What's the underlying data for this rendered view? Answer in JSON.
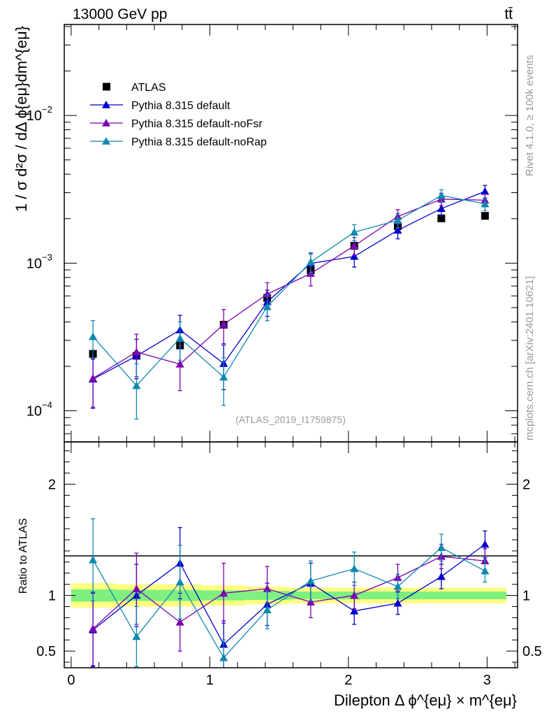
{
  "header": {
    "left": "13000 GeV pp",
    "right": "tt̄"
  },
  "side_labels": {
    "rivet": "Rivet 4.1.0, ≥ 100k events",
    "source": "mcplots.cern.ch [arXiv:2401.10621]"
  },
  "watermark": "(ATLAS_2019_I1759875)",
  "chart_data": [
    {
      "panel": "main",
      "type": "scatter",
      "scale": "log",
      "ylabel": "1 / σ  d²σ / dΔ ϕ{eμ}dm^{eμ}",
      "ylim": [
        6.16e-05,
        0.0413
      ],
      "xlim": [
        -0.05,
        3.22
      ],
      "y_ticks": [
        {
          "value": 0.0001,
          "base": "10",
          "exp": "−4"
        },
        {
          "value": 0.001,
          "base": "10",
          "exp": "−3"
        },
        {
          "value": 0.01,
          "base": "10",
          "exp": "−2"
        }
      ],
      "x": [
        0.157,
        0.471,
        0.785,
        1.1,
        1.414,
        1.728,
        2.042,
        2.356,
        2.67,
        2.985
      ],
      "series": [
        {
          "name": "ATLAS",
          "color": "#000000",
          "marker": "square",
          "line": false,
          "values": [
            0.000243,
            0.000236,
            0.000277,
            0.000383,
            0.000581,
            0.000895,
            0.00131,
            0.00178,
            0.00201,
            0.00209
          ],
          "err": [
            2e-05,
            2e-05,
            2e-05,
            2e-05,
            3e-05,
            4e-05,
            5e-05,
            6e-05,
            7e-05,
            7e-05
          ]
        },
        {
          "name": "Pythia 8.315 default",
          "color": "#0000cc",
          "marker": "triangle",
          "line": true,
          "values": [
            0.000164,
            0.000235,
            0.000353,
            0.000209,
            0.000546,
            0.000996,
            0.00111,
            0.00167,
            0.00234,
            0.00306
          ],
          "err": [
            6e-05,
            7e-05,
            9e-05,
            7e-05,
            0.00011,
            0.00016,
            0.00017,
            0.00021,
            0.00025,
            0.0003
          ]
        },
        {
          "name": "Pythia 8.315 default-noFsr",
          "color": "#7b00b0",
          "marker": "triangle",
          "line": true,
          "values": [
            0.000166,
            0.00025,
            0.000207,
            0.000385,
            0.000617,
            0.000851,
            0.00131,
            0.00207,
            0.00271,
            0.00267
          ],
          "err": [
            6e-05,
            8e-05,
            7e-05,
            0.0001,
            0.00012,
            0.00015,
            0.00018,
            0.00023,
            0.00026,
            0.00026
          ]
        },
        {
          "name": "Pythia 8.315 default-noRap",
          "color": "#0e88b0",
          "marker": "triangle",
          "line": true,
          "values": [
            0.000318,
            0.000148,
            0.00031,
            0.000169,
            0.000507,
            0.001017,
            0.00162,
            0.00195,
            0.00287,
            0.00252
          ],
          "err": [
            9e-05,
            6e-05,
            9e-05,
            6e-05,
            0.0001,
            0.00016,
            0.0002,
            0.00022,
            0.00027,
            0.00025
          ]
        }
      ]
    },
    {
      "panel": "ratio",
      "type": "scatter",
      "ylabel": "Ratio to ATLAS",
      "xlabel": "Dilepton Δ ϕ^{eμ} × m^{eμ}",
      "ylim": [
        0.35,
        2.38
      ],
      "x_ticks": [
        "0",
        "1",
        "2",
        "3"
      ],
      "y_ticks": [
        "0.5",
        "1",
        "2"
      ],
      "x": [
        0.157,
        0.471,
        0.785,
        1.1,
        1.414,
        1.728,
        2.042,
        2.356,
        2.67,
        2.985
      ],
      "band_inner": [
        0.055,
        0.05,
        0.05,
        0.045,
        0.04,
        0.035,
        0.035,
        0.035,
        0.035,
        0.035
      ],
      "band_outer": [
        0.11,
        0.1,
        0.1,
        0.09,
        0.08,
        0.07,
        0.07,
        0.07,
        0.07,
        0.07
      ],
      "series": [
        {
          "name": "Pythia 8.315 default",
          "color": "#0000cc",
          "values": [
            0.69,
            1.0,
            1.29,
            0.56,
            0.92,
            1.11,
            0.86,
            0.93,
            1.17,
            1.46
          ],
          "err": [
            0.33,
            0.28,
            0.32,
            0.21,
            0.19,
            0.18,
            0.12,
            0.1,
            0.11,
            0.12
          ]
        },
        {
          "name": "Pythia 8.315 default-noFsr",
          "color": "#7b00b0",
          "values": [
            0.7,
            1.06,
            0.76,
            1.02,
            1.06,
            0.94,
            1.0,
            1.16,
            1.35,
            1.31
          ],
          "err": [
            0.33,
            0.32,
            0.26,
            0.27,
            0.2,
            0.14,
            0.12,
            0.12,
            0.11,
            0.11
          ]
        },
        {
          "name": "Pythia 8.315 default-noRap",
          "color": "#0e88b0",
          "values": [
            1.32,
            0.63,
            1.12,
            0.44,
            0.87,
            1.13,
            1.24,
            1.08,
            1.43,
            1.22
          ],
          "err": [
            0.37,
            0.27,
            0.33,
            0.16,
            0.17,
            0.18,
            0.15,
            0.11,
            0.12,
            0.1
          ]
        }
      ]
    }
  ]
}
